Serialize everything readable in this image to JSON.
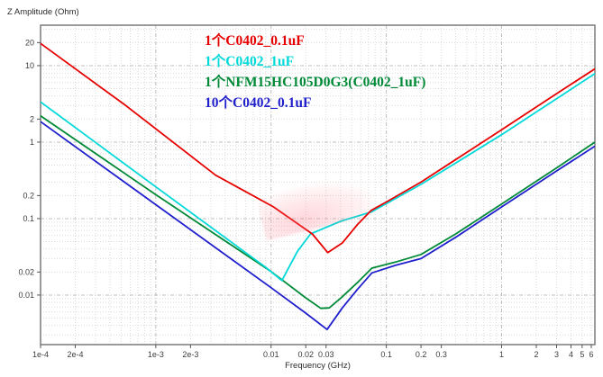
{
  "title": "Z Amplitude (Ohm)",
  "xlabel": "Frequency (GHz)",
  "chart_data": {
    "type": "line",
    "xscale": "log",
    "yscale": "log",
    "xlim": [
      0.0001,
      6.45
    ],
    "ylim": [
      0.00225,
      33.8
    ],
    "grid": "on",
    "legend_position": "top-center-inside",
    "x_ticks": [
      {
        "v": 0.0001,
        "label": "1e-4"
      },
      {
        "v": 0.0002,
        "label": "2e-4"
      },
      {
        "v": 0.001,
        "label": "1e-3"
      },
      {
        "v": 0.002,
        "label": "2e-3"
      },
      {
        "v": 0.01,
        "label": "0.01"
      },
      {
        "v": 0.02,
        "label": "0.02"
      },
      {
        "v": 0.03,
        "label": "0.03"
      },
      {
        "v": 0.1,
        "label": "0.1"
      },
      {
        "v": 0.2,
        "label": "0.2"
      },
      {
        "v": 0.3,
        "label": "0.3"
      },
      {
        "v": 1,
        "label": "1"
      },
      {
        "v": 2,
        "label": "2"
      },
      {
        "v": 3,
        "label": "3"
      },
      {
        "v": 4,
        "label": "4"
      },
      {
        "v": 5,
        "label": "5"
      },
      {
        "v": 6,
        "label": "6"
      }
    ],
    "y_ticks": [
      {
        "v": 20,
        "label": "20"
      },
      {
        "v": 10,
        "label": "10"
      },
      {
        "v": 2,
        "label": "2"
      },
      {
        "v": 1,
        "label": "1"
      },
      {
        "v": 0.2,
        "label": "0.2"
      },
      {
        "v": 0.1,
        "label": "0.1"
      },
      {
        "v": 0.02,
        "label": "0.02"
      },
      {
        "v": 0.01,
        "label": "0.01"
      }
    ],
    "series": [
      {
        "label": "1个C0402_0.1uF",
        "color": "#e60000",
        "points": [
          [
            0.0001,
            19.5
          ],
          [
            0.00055,
            3.0
          ],
          [
            0.0033,
            0.37
          ],
          [
            0.0105,
            0.142
          ],
          [
            0.0228,
            0.063
          ],
          [
            0.031,
            0.036
          ],
          [
            0.0415,
            0.048
          ],
          [
            0.056,
            0.083
          ],
          [
            0.074,
            0.128
          ],
          [
            0.1,
            0.165
          ],
          [
            0.2,
            0.3
          ],
          [
            1,
            1.45
          ],
          [
            3,
            4.3
          ],
          [
            6.4,
            9.0
          ]
        ]
      },
      {
        "label": "1个C0402_1uF",
        "color": "#00d9d9",
        "points": [
          [
            0.0001,
            3.35
          ],
          [
            0.001,
            0.26
          ],
          [
            0.005,
            0.044
          ],
          [
            0.009,
            0.023
          ],
          [
            0.0124,
            0.0155
          ],
          [
            0.0169,
            0.037
          ],
          [
            0.022,
            0.063
          ],
          [
            0.04,
            0.092
          ],
          [
            0.074,
            0.122
          ],
          [
            0.2,
            0.28
          ],
          [
            1,
            1.25
          ],
          [
            3,
            3.7
          ],
          [
            6.4,
            7.8
          ]
        ]
      },
      {
        "label": "1个NFM15HC105D0G3(C0402_1uF)",
        "color": "#008a38",
        "points": [
          [
            0.0001,
            2.2
          ],
          [
            0.001,
            0.205
          ],
          [
            0.01,
            0.0203
          ],
          [
            0.02,
            0.0092
          ],
          [
            0.027,
            0.0067
          ],
          [
            0.032,
            0.0068
          ],
          [
            0.0415,
            0.0095
          ],
          [
            0.056,
            0.0145
          ],
          [
            0.075,
            0.0225
          ],
          [
            0.12,
            0.027
          ],
          [
            0.2,
            0.034
          ],
          [
            0.4,
            0.063
          ],
          [
            1,
            0.155
          ],
          [
            3,
            0.46
          ],
          [
            6.4,
            0.99
          ]
        ]
      },
      {
        "label": "10个C0402_0.1uF",
        "color": "#1f1fcc",
        "points": [
          [
            0.0001,
            1.85
          ],
          [
            0.001,
            0.152
          ],
          [
            0.01,
            0.0125
          ],
          [
            0.02,
            0.0058
          ],
          [
            0.0306,
            0.00355
          ],
          [
            0.0415,
            0.0068
          ],
          [
            0.056,
            0.0118
          ],
          [
            0.075,
            0.0195
          ],
          [
            0.12,
            0.0245
          ],
          [
            0.2,
            0.03
          ],
          [
            0.4,
            0.057
          ],
          [
            1,
            0.142
          ],
          [
            3,
            0.42
          ],
          [
            6.4,
            0.88
          ]
        ]
      }
    ]
  }
}
